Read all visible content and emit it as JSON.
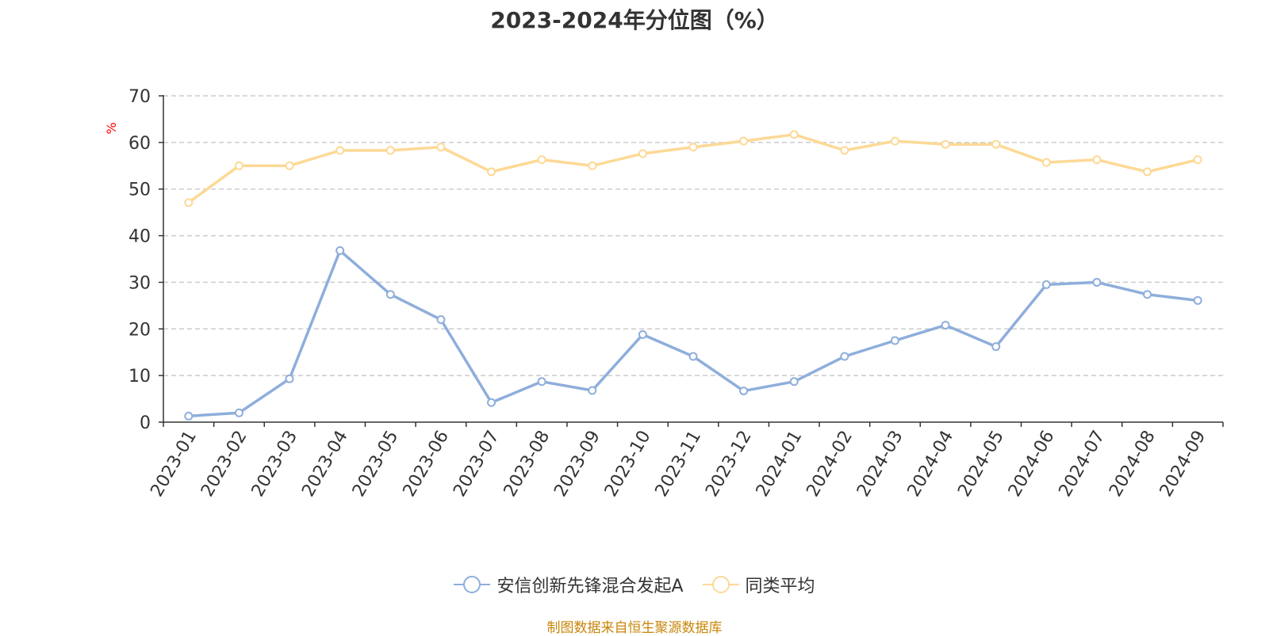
{
  "chart_data": {
    "type": "line",
    "title": "2023-2024年分位图（%）",
    "ylabel": "%",
    "ylim": [
      0,
      70
    ],
    "yticks": [
      0,
      10,
      20,
      30,
      40,
      50,
      60,
      70
    ],
    "grid": true,
    "legend_position": "bottom",
    "categories": [
      "2023-01",
      "2023-02",
      "2023-03",
      "2023-04",
      "2023-05",
      "2023-06",
      "2023-07",
      "2023-08",
      "2023-09",
      "2023-10",
      "2023-11",
      "2023-12",
      "2024-01",
      "2024-02",
      "2024-03",
      "2024-04",
      "2024-05",
      "2024-06",
      "2024-07",
      "2024-08",
      "2024-09"
    ],
    "series": [
      {
        "name": "安信创新先锋混合发起A",
        "color": "#8eaedb",
        "values": [
          1.3,
          2.0,
          9.3,
          36.8,
          27.4,
          22.0,
          4.2,
          8.7,
          6.8,
          18.8,
          14.1,
          6.7,
          8.7,
          14.1,
          17.5,
          20.8,
          16.2,
          29.5,
          30.0,
          27.4,
          26.1
        ]
      },
      {
        "name": "同类平均",
        "color": "#fdd996",
        "values": [
          47.1,
          55.0,
          55.0,
          58.3,
          58.3,
          59.0,
          53.7,
          56.3,
          55.0,
          57.6,
          59.0,
          60.3,
          61.7,
          58.3,
          60.3,
          59.6,
          59.6,
          55.7,
          56.3,
          53.7,
          56.3
        ]
      }
    ]
  },
  "footer": {
    "source": "制图数据来自恒生聚源数据库"
  }
}
